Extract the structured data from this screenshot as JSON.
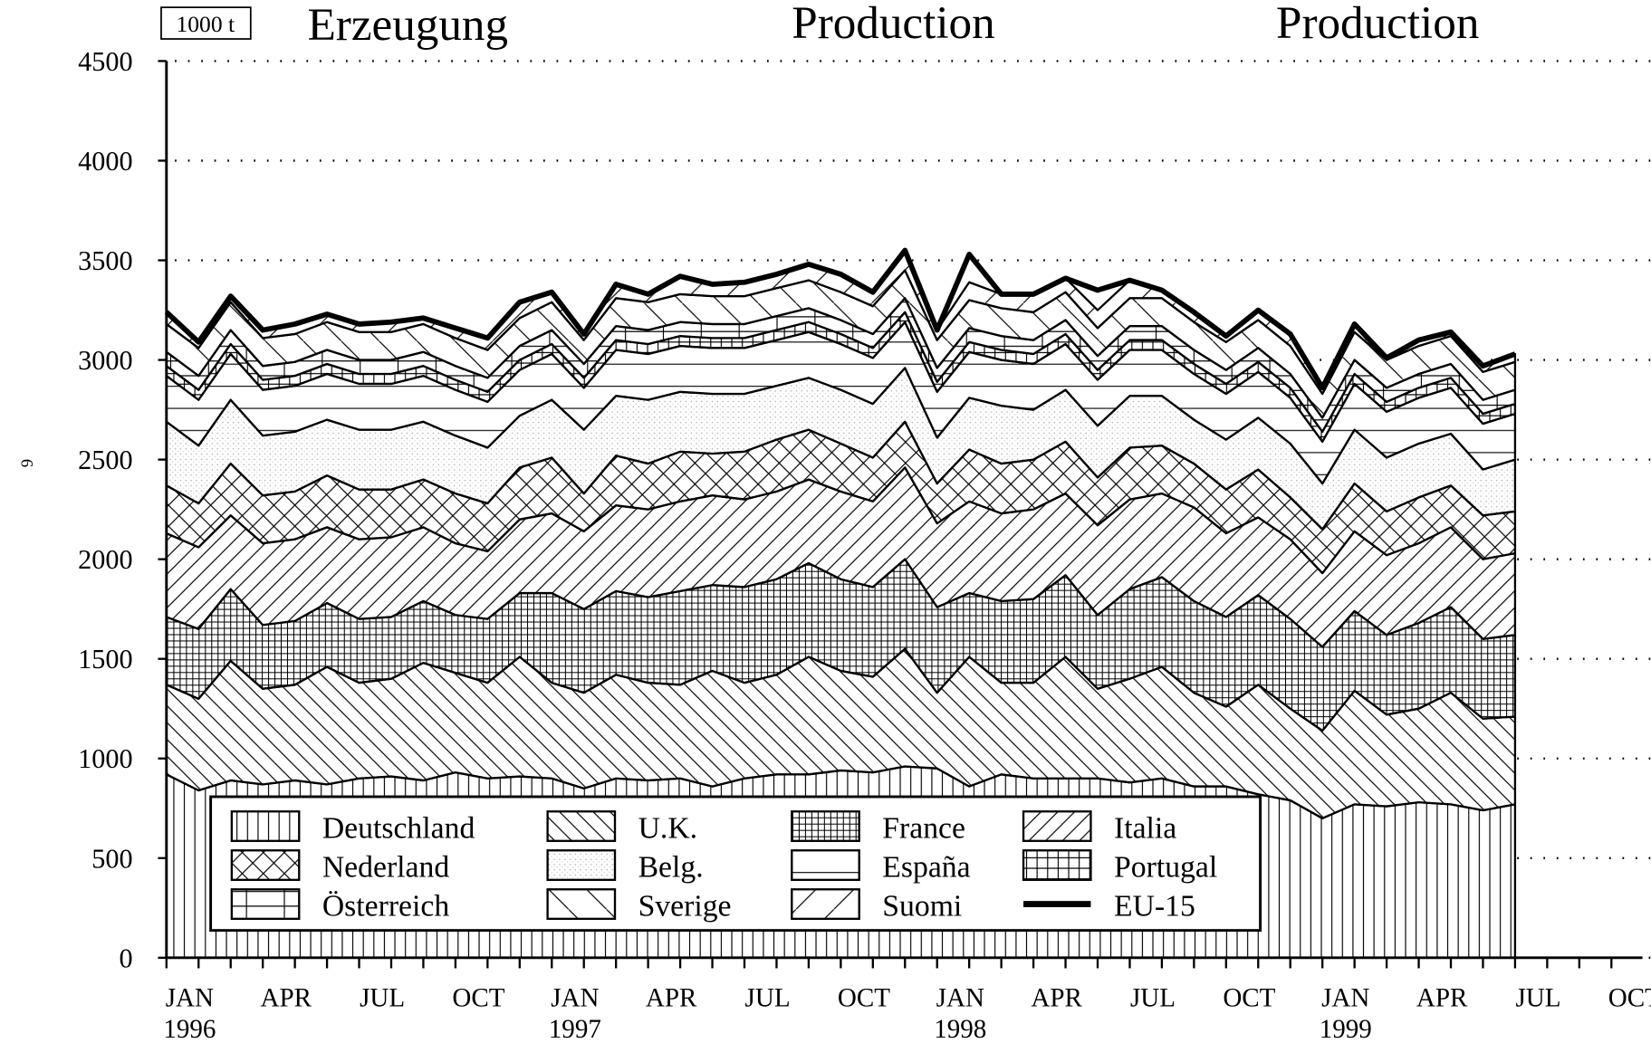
{
  "chart_data": {
    "type": "area",
    "stacked": true,
    "unit_label": "1000 t",
    "titles": [
      "Erzeugung",
      "Production",
      "Production"
    ],
    "page_number": "6",
    "categories": [
      "JAN",
      null,
      null,
      "APR",
      null,
      null,
      "JUL",
      null,
      null,
      "OCT",
      null,
      null,
      "JAN",
      null,
      null,
      "APR",
      null,
      null,
      "JUL",
      null,
      null,
      "OCT",
      null,
      null,
      "JAN",
      null,
      null,
      "APR",
      null,
      null,
      "JUL",
      null,
      null,
      "OCT",
      null,
      null,
      "JAN",
      null,
      null,
      "APR",
      null,
      null,
      "JUL",
      null,
      null,
      "OCT"
    ],
    "category_years": [
      "1996",
      null,
      null,
      null,
      null,
      null,
      null,
      null,
      null,
      null,
      null,
      null,
      "1997",
      null,
      null,
      null,
      null,
      null,
      null,
      null,
      null,
      null,
      null,
      null,
      "1998",
      null,
      null,
      null,
      null,
      null,
      null,
      null,
      null,
      null,
      null,
      null,
      "1999",
      null,
      null,
      null,
      null,
      null,
      null,
      null,
      null,
      null
    ],
    "ylim": [
      0,
      4500
    ],
    "yticks": [
      0,
      500,
      1000,
      1500,
      2000,
      2500,
      3000,
      3500,
      4000,
      4500
    ],
    "grid": true,
    "grid_style": "dotted",
    "legend": "bottom-left",
    "series": [
      {
        "name": "Deutschland",
        "type": "area",
        "pattern": "vertical",
        "color": "#000",
        "values": [
          920,
          840,
          890,
          870,
          890,
          870,
          900,
          910,
          890,
          930,
          900,
          910,
          900,
          850,
          900,
          890,
          900,
          860,
          900,
          920,
          920,
          940,
          930,
          960,
          950,
          860,
          920,
          900,
          900,
          900,
          880,
          900,
          860,
          860,
          820,
          790,
          700,
          770,
          760,
          780,
          770,
          740,
          770,
          null,
          null,
          null
        ]
      },
      {
        "name": "U.K.",
        "type": "area",
        "pattern": "backslash",
        "color": "#000",
        "values": [
          450,
          460,
          600,
          480,
          480,
          590,
          480,
          490,
          590,
          500,
          480,
          600,
          480,
          480,
          520,
          490,
          470,
          580,
          480,
          500,
          590,
          500,
          480,
          590,
          380,
          650,
          460,
          480,
          610,
          450,
          520,
          560,
          470,
          400,
          550,
          460,
          440,
          570,
          460,
          470,
          560,
          460,
          440,
          null,
          null,
          null
        ]
      },
      {
        "name": "France",
        "type": "area",
        "pattern": "crosshatch",
        "color": "#000",
        "values": [
          340,
          350,
          360,
          320,
          320,
          320,
          320,
          310,
          310,
          290,
          320,
          320,
          450,
          420,
          420,
          430,
          470,
          430,
          480,
          480,
          470,
          460,
          450,
          450,
          430,
          320,
          410,
          420,
          410,
          370,
          450,
          450,
          460,
          450,
          450,
          450,
          420,
          400,
          400,
          430,
          430,
          400,
          410,
          null,
          null,
          null
        ]
      },
      {
        "name": "Italia",
        "type": "area",
        "pattern": "slash",
        "color": "#000",
        "values": [
          420,
          410,
          370,
          410,
          410,
          380,
          400,
          400,
          370,
          360,
          340,
          370,
          400,
          390,
          430,
          440,
          450,
          450,
          440,
          440,
          420,
          440,
          430,
          460,
          420,
          460,
          440,
          450,
          410,
          450,
          450,
          420,
          470,
          420,
          390,
          400,
          370,
          400,
          400,
          400,
          400,
          400,
          410,
          null,
          null,
          null
        ]
      },
      {
        "name": "Nederland",
        "type": "area",
        "pattern": "xhatch",
        "color": "#000",
        "values": [
          240,
          220,
          260,
          240,
          240,
          260,
          250,
          240,
          240,
          250,
          240,
          260,
          280,
          190,
          250,
          230,
          250,
          210,
          240,
          260,
          250,
          240,
          220,
          230,
          200,
          260,
          250,
          250,
          260,
          240,
          260,
          240,
          220,
          220,
          240,
          210,
          220,
          240,
          220,
          230,
          210,
          220,
          210,
          null,
          null,
          null
        ]
      },
      {
        "name": "Belg.",
        "type": "area",
        "pattern": "dots",
        "color": "#000",
        "values": [
          320,
          290,
          320,
          300,
          300,
          280,
          300,
          300,
          290,
          290,
          280,
          260,
          290,
          320,
          300,
          320,
          300,
          300,
          290,
          270,
          260,
          270,
          270,
          270,
          230,
          260,
          290,
          250,
          260,
          260,
          260,
          250,
          220,
          250,
          260,
          270,
          230,
          270,
          270,
          270,
          260,
          230,
          260,
          null,
          null,
          null
        ]
      },
      {
        "name": "España",
        "type": "area",
        "pattern": "horizontal",
        "color": "#000",
        "values": [
          230,
          230,
          230,
          230,
          230,
          230,
          230,
          230,
          230,
          230,
          230,
          230,
          230,
          210,
          230,
          230,
          230,
          230,
          230,
          230,
          230,
          230,
          230,
          230,
          230,
          230,
          230,
          230,
          230,
          230,
          230,
          230,
          230,
          230,
          230,
          230,
          210,
          230,
          230,
          230,
          230,
          230,
          230,
          null,
          null,
          null
        ]
      },
      {
        "name": "Portugal",
        "type": "area",
        "pattern": "grid",
        "color": "#000",
        "values": [
          50,
          50,
          50,
          50,
          50,
          50,
          50,
          50,
          50,
          50,
          50,
          50,
          50,
          50,
          50,
          50,
          50,
          50,
          50,
          50,
          50,
          50,
          50,
          50,
          50,
          50,
          50,
          50,
          50,
          50,
          50,
          50,
          50,
          50,
          50,
          50,
          50,
          50,
          50,
          50,
          50,
          50,
          50,
          null,
          null,
          null
        ]
      },
      {
        "name": "Österreich",
        "type": "area",
        "pattern": "widegrid",
        "color": "#000",
        "values": [
          70,
          70,
          70,
          70,
          70,
          70,
          70,
          70,
          70,
          70,
          70,
          70,
          70,
          70,
          70,
          70,
          70,
          70,
          70,
          70,
          70,
          70,
          70,
          70,
          70,
          70,
          70,
          70,
          70,
          70,
          70,
          70,
          70,
          70,
          70,
          70,
          70,
          70,
          70,
          70,
          70,
          70,
          70,
          null,
          null,
          null
        ]
      },
      {
        "name": "Sverige",
        "type": "area",
        "pattern": "widebackslash",
        "color": "#000",
        "values": [
          140,
          140,
          140,
          140,
          140,
          140,
          140,
          140,
          140,
          140,
          140,
          140,
          140,
          120,
          140,
          140,
          140,
          140,
          140,
          140,
          140,
          140,
          140,
          140,
          140,
          140,
          140,
          140,
          140,
          140,
          140,
          140,
          140,
          140,
          140,
          140,
          120,
          140,
          140,
          140,
          140,
          140,
          140,
          null,
          null,
          null
        ]
      },
      {
        "name": "Suomi",
        "type": "area",
        "pattern": "wideslash",
        "color": "#000",
        "values": [
          60,
          30,
          30,
          40,
          50,
          40,
          40,
          50,
          30,
          50,
          60,
          80,
          50,
          30,
          70,
          40,
          90,
          60,
          70,
          70,
          80,
          90,
          70,
          100,
          50,
          90,
          70,
          90,
          70,
          90,
          90,
          40,
          50,
          30,
          50,
          60,
          30,
          40,
          20,
          30,
          20,
          30,
          40,
          null,
          null,
          null
        ]
      },
      {
        "name": "EU-15",
        "type": "line",
        "color": "#000",
        "values": [
          3240,
          3090,
          3320,
          3150,
          3180,
          3230,
          3180,
          3190,
          3210,
          3160,
          3110,
          3290,
          3340,
          3130,
          3380,
          3330,
          3420,
          3380,
          3390,
          3430,
          3480,
          3430,
          3340,
          3550,
          3150,
          3530,
          3330,
          3330,
          3410,
          3350,
          3400,
          3350,
          3240,
          3120,
          3250,
          3130,
          2860,
          3180,
          3010,
          3100,
          3140,
          2970,
          3030,
          null,
          null,
          null
        ]
      }
    ]
  }
}
